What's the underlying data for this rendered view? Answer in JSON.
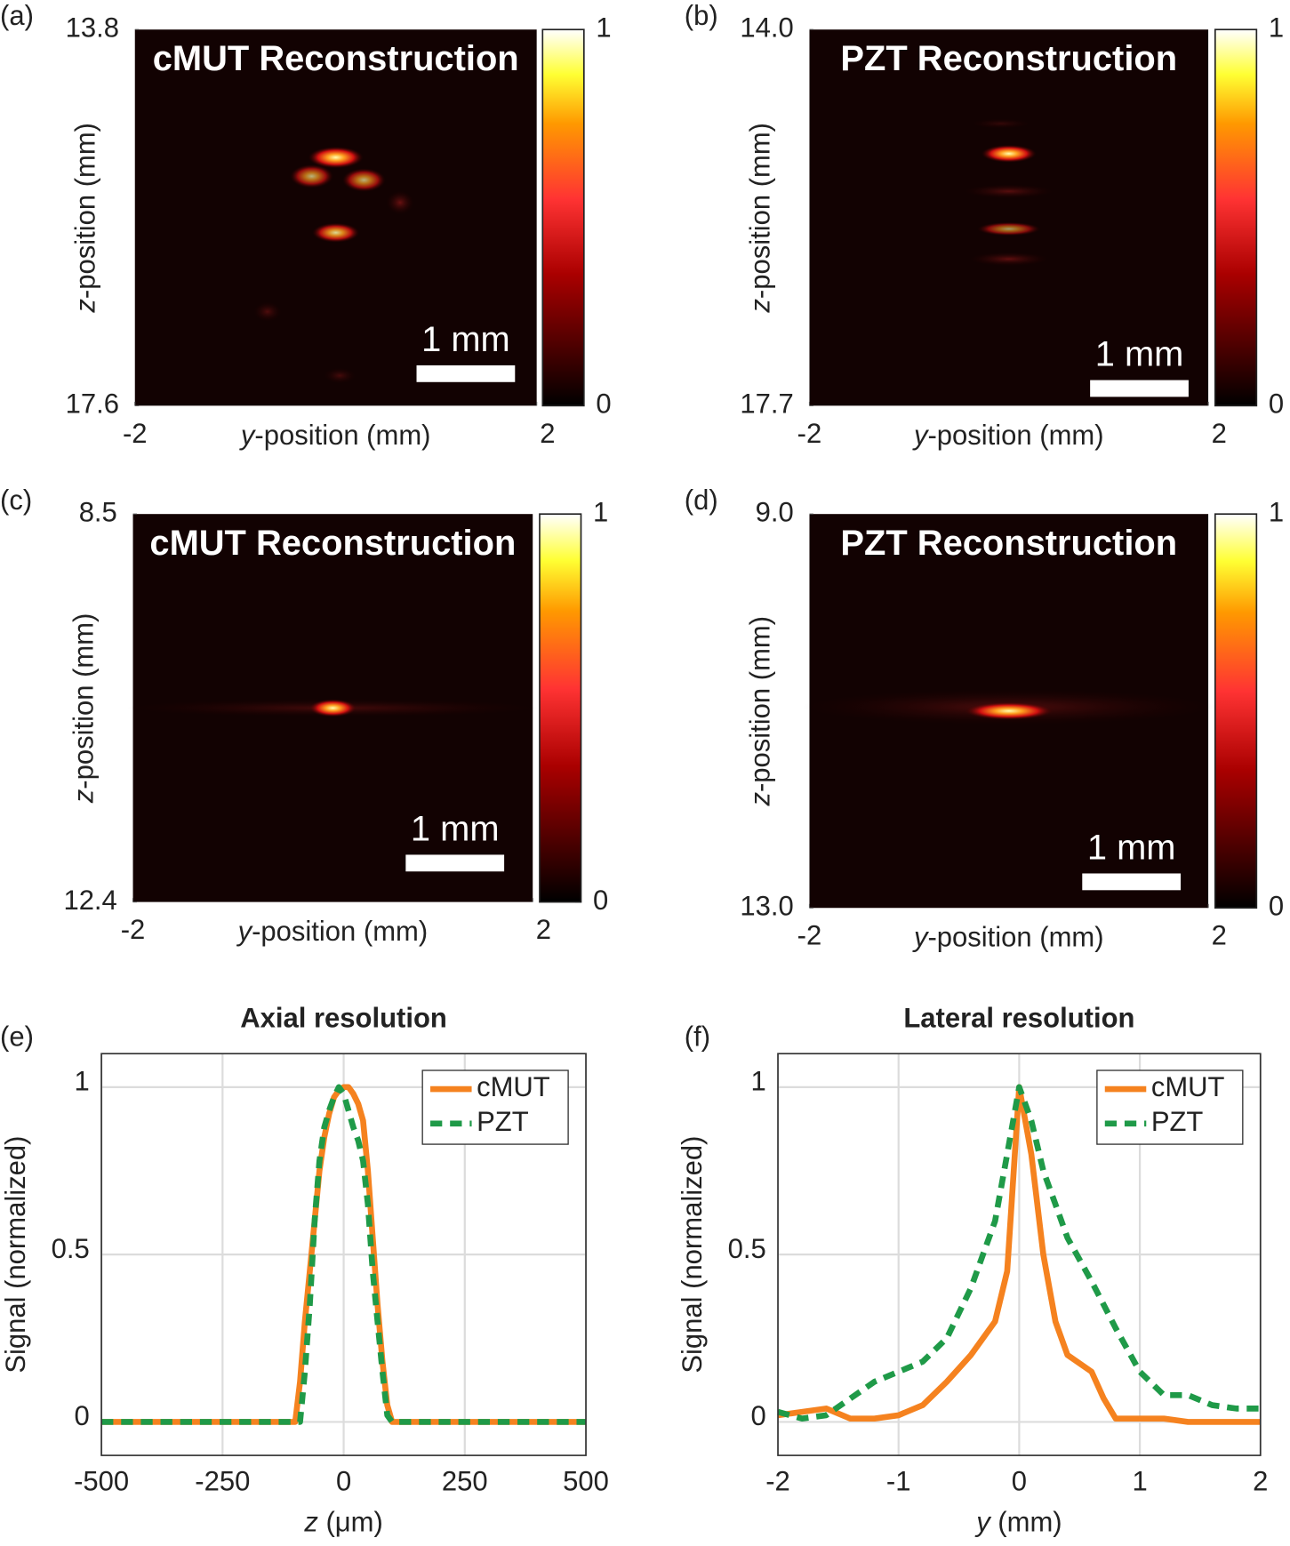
{
  "chart_data": [
    {
      "type": "heatmap",
      "panel": "(a)",
      "title": "cMUT Reconstruction",
      "scale_bar": "1 mm",
      "x_label": [
        "y",
        "-position (mm)"
      ],
      "y_label": [
        "z",
        "-position (mm)"
      ],
      "xlim": [
        -2,
        2
      ],
      "xticks": [
        -2,
        2
      ],
      "ylim": [
        17.6,
        13.8
      ],
      "yticks": [
        13.8,
        17.6
      ],
      "colorbar_lim": [
        0,
        1
      ],
      "colorbar_ticks": [
        0,
        1
      ]
    },
    {
      "type": "heatmap",
      "panel": "(b)",
      "title": "PZT Reconstruction",
      "scale_bar": "1 mm",
      "x_label": [
        "y",
        "-position (mm)"
      ],
      "y_label": [
        "z",
        "-position (mm)"
      ],
      "xlim": [
        -2,
        2
      ],
      "xticks": [
        -2,
        2
      ],
      "ylim": [
        17.7,
        14.0
      ],
      "yticks": [
        {
          "value": 14.0,
          "label": "14.0"
        },
        17.7
      ],
      "colorbar_lim": [
        0,
        1
      ],
      "colorbar_ticks": [
        0,
        1
      ]
    },
    {
      "type": "heatmap",
      "panel": "(c)",
      "title": "cMUT Reconstruction",
      "scale_bar": "1 mm",
      "x_label": [
        "y",
        "-position (mm)"
      ],
      "y_label": [
        "z",
        "-position (mm)"
      ],
      "xlim": [
        -2,
        2
      ],
      "xticks": [
        -2,
        2
      ],
      "ylim": [
        12.4,
        8.5
      ],
      "yticks": [
        8.5,
        12.4
      ],
      "colorbar_lim": [
        0,
        1
      ],
      "colorbar_ticks": [
        0,
        1
      ]
    },
    {
      "type": "heatmap",
      "panel": "(d)",
      "title": "PZT Reconstruction",
      "scale_bar": "1 mm",
      "x_label": [
        "y",
        "-position (mm)"
      ],
      "y_label": [
        "z",
        "-position (mm)"
      ],
      "xlim": [
        -2,
        2
      ],
      "xticks": [
        -2,
        2
      ],
      "ylim": [
        13.0,
        9.0
      ],
      "yticks": [
        {
          "value": 9.0,
          "label": "9.0"
        },
        {
          "value": 13.0,
          "label": "13.0"
        }
      ],
      "colorbar_lim": [
        0,
        1
      ],
      "colorbar_ticks": [
        0,
        1
      ]
    },
    {
      "type": "line",
      "panel": "(e)",
      "title": "Axial resolution",
      "x_label": [
        "z",
        " (μm)"
      ],
      "y_label": "Signal (normalized)",
      "x": [
        -500,
        -100,
        -90,
        -80,
        -70,
        -60,
        -50,
        -40,
        -30,
        -20,
        -10,
        0,
        10,
        20,
        30,
        40,
        50,
        60,
        70,
        80,
        90,
        100,
        500
      ],
      "series": [
        {
          "name": "cMUT",
          "color": "#f5821f",
          "dash": false,
          "values": [
            0,
            0,
            0.12,
            0.3,
            0.45,
            0.6,
            0.75,
            0.85,
            0.92,
            0.97,
            0.99,
            1.0,
            1.0,
            0.98,
            0.95,
            0.9,
            0.75,
            0.55,
            0.35,
            0.18,
            0.05,
            0,
            0
          ]
        },
        {
          "name": "PZT",
          "color": "#1f9a48",
          "dash": true,
          "values": [
            0,
            0,
            0,
            0.15,
            0.35,
            0.6,
            0.78,
            0.88,
            0.93,
            0.97,
            1.0,
            0.98,
            0.93,
            0.88,
            0.84,
            0.78,
            0.65,
            0.45,
            0.3,
            0.15,
            0.02,
            0,
            0
          ]
        }
      ],
      "xlim": [
        -500,
        500
      ],
      "xticks": [
        -500,
        -250,
        0,
        250,
        500
      ],
      "ylim": [
        -0.1,
        1.1
      ],
      "yticks": [
        0,
        0.5,
        1
      ],
      "grid": true,
      "legend": "upper right"
    },
    {
      "type": "line",
      "panel": "(f)",
      "title": "Lateral resolution",
      "x_label": [
        "y",
        " (mm)"
      ],
      "y_label": "Signal (normalized)",
      "x": [
        -2,
        -1.8,
        -1.6,
        -1.4,
        -1.2,
        -1,
        -0.8,
        -0.6,
        -0.4,
        -0.2,
        -0.1,
        0,
        0.1,
        0.2,
        0.3,
        0.4,
        0.6,
        0.7,
        0.8,
        1,
        1.2,
        1.4,
        1.6,
        1.8,
        2
      ],
      "series": [
        {
          "name": "cMUT",
          "color": "#f5821f",
          "dash": false,
          "values": [
            0.02,
            0.03,
            0.04,
            0.01,
            0.01,
            0.02,
            0.05,
            0.12,
            0.2,
            0.3,
            0.45,
            1.0,
            0.8,
            0.5,
            0.3,
            0.2,
            0.15,
            0.07,
            0.01,
            0.01,
            0.01,
            0,
            0,
            0,
            0
          ]
        },
        {
          "name": "PZT",
          "color": "#1f9a48",
          "dash": true,
          "values": [
            0.03,
            0.01,
            0.02,
            0.07,
            0.12,
            0.15,
            0.18,
            0.25,
            0.4,
            0.6,
            0.8,
            1.0,
            0.9,
            0.75,
            0.65,
            0.55,
            0.42,
            0.35,
            0.28,
            0.15,
            0.08,
            0.08,
            0.05,
            0.04,
            0.04
          ]
        }
      ],
      "xlim": [
        -2,
        2
      ],
      "xticks": [
        -2,
        -1,
        0,
        1,
        2
      ],
      "ylim": [
        -0.1,
        1.1
      ],
      "yticks": [
        0,
        0.5,
        1
      ],
      "grid": true,
      "legend": "upper right"
    }
  ]
}
